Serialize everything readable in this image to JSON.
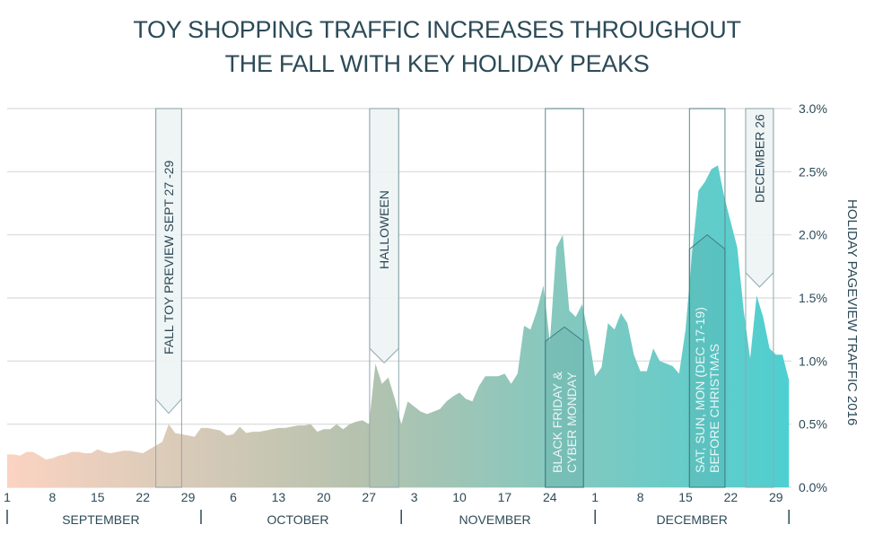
{
  "chart_data": {
    "type": "area",
    "title_line1": "TOY SHOPPING TRAFFIC INCREASES THROUGHOUT",
    "title_line2": "THE FALL WITH KEY HOLIDAY PEAKS",
    "ylabel": "HOLIDAY PAGEVIEW TRAFFIC 2016",
    "xlabel": "",
    "x_start": "Sep 1 2016",
    "x_unit": "day",
    "ylim": [
      0,
      3.0
    ],
    "yticks": [
      "0.0%",
      "0.5%",
      "1.0%",
      "1.5%",
      "2.0%",
      "2.5%",
      "3.0%"
    ],
    "grid": true,
    "xtick_labels": [
      "1",
      "8",
      "15",
      "22",
      "29",
      "6",
      "13",
      "20",
      "27",
      "3",
      "10",
      "17",
      "24",
      "1",
      "8",
      "15",
      "22",
      "29"
    ],
    "xtick_day_index": [
      0,
      7,
      14,
      21,
      28,
      35,
      42,
      49,
      56,
      63,
      70,
      77,
      84,
      91,
      98,
      105,
      112,
      119
    ],
    "months": [
      {
        "label": "SEPTEMBER",
        "start": 0,
        "end": 30
      },
      {
        "label": "OCTOBER",
        "start": 30,
        "end": 61
      },
      {
        "label": "NOVEMBER",
        "start": 61,
        "end": 91
      },
      {
        "label": "DECEMBER",
        "start": 91,
        "end": 122
      }
    ],
    "values": [
      0.26,
      0.26,
      0.25,
      0.28,
      0.28,
      0.25,
      0.22,
      0.23,
      0.25,
      0.26,
      0.28,
      0.28,
      0.27,
      0.27,
      0.3,
      0.28,
      0.27,
      0.28,
      0.29,
      0.29,
      0.28,
      0.27,
      0.3,
      0.33,
      0.36,
      0.5,
      0.43,
      0.42,
      0.41,
      0.4,
      0.47,
      0.47,
      0.46,
      0.45,
      0.41,
      0.42,
      0.48,
      0.43,
      0.44,
      0.44,
      0.45,
      0.46,
      0.47,
      0.47,
      0.48,
      0.49,
      0.49,
      0.5,
      0.44,
      0.46,
      0.46,
      0.5,
      0.46,
      0.5,
      0.52,
      0.53,
      0.5,
      0.98,
      0.82,
      0.87,
      0.7,
      0.5,
      0.68,
      0.64,
      0.6,
      0.58,
      0.6,
      0.62,
      0.68,
      0.72,
      0.75,
      0.7,
      0.68,
      0.8,
      0.88,
      0.88,
      0.88,
      0.9,
      0.82,
      0.9,
      1.28,
      1.25,
      1.4,
      1.6,
      1.15,
      1.9,
      2.0,
      1.4,
      1.35,
      1.45,
      1.2,
      0.88,
      0.95,
      1.3,
      1.25,
      1.38,
      1.3,
      1.05,
      0.92,
      0.92,
      1.1,
      1.0,
      0.98,
      0.96,
      0.9,
      1.25,
      1.85,
      2.35,
      2.42,
      2.52,
      2.55,
      2.3,
      2.1,
      1.9,
      1.4,
      1.02,
      1.52,
      1.35,
      1.1,
      1.05,
      1.05,
      0.85
    ],
    "colors": {
      "start": "#fbd3c2",
      "mid": "#b5c2ae",
      "end": "#4ecfd1",
      "text": "#2c4a57",
      "grid": "#e0e0e0",
      "band": "#8fa9ad"
    },
    "annotations": [
      {
        "label": "FALL TOY PREVIEW SEPT 27 -29",
        "start": 23.0,
        "end": 27.0,
        "style": "top",
        "level": 0.7
      },
      {
        "label": "HALLOWEEN",
        "start": 56.1,
        "end": 60.6,
        "style": "top",
        "level": 1.1
      },
      {
        "label": "BLACK FRIDAY &",
        "label2": "CYBER MONDAY",
        "start": 83.3,
        "end": 89.2,
        "style": "bottom",
        "level": 1.27
      },
      {
        "label": "SAT, SUN, MON (DEC 17-19)",
        "label2": "BEFORE CHRISTMAS",
        "start": 105.6,
        "end": 111.1,
        "style": "bottom",
        "level": 2.0
      },
      {
        "label": "DECEMBER 26",
        "start": 114.3,
        "end": 118.6,
        "style": "top",
        "level": 1.7
      }
    ]
  }
}
